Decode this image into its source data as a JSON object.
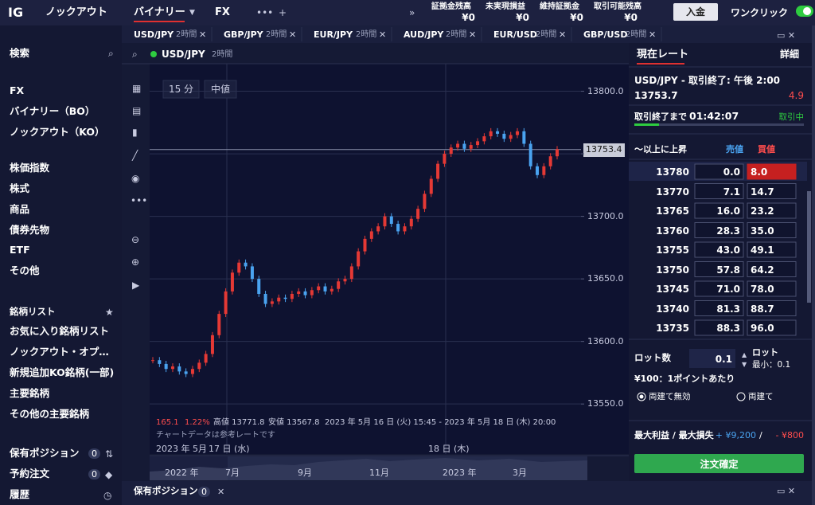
{
  "topbar": {
    "logo": "IG",
    "tabs": [
      "ノックアウト",
      "バイナリー",
      "FX"
    ],
    "summary": [
      {
        "label": "証拠金残高",
        "value": "¥0"
      },
      {
        "label": "未実現損益",
        "value": "¥0"
      },
      {
        "label": "維持証拠金",
        "value": "¥0"
      },
      {
        "label": "取引可能残高",
        "value": "¥0"
      }
    ],
    "deposit": "入金",
    "one_click": "ワンクリック"
  },
  "sidebar": {
    "search": "検索",
    "markets": [
      "FX",
      "バイナリー（BO）",
      "ノックアウト（KO）"
    ],
    "assets": [
      "株価指数",
      "株式",
      "商品",
      "債券先物",
      "ETF",
      "その他"
    ],
    "watchlist_title": "銘柄リスト",
    "watchlists": [
      "お気に入り銘柄リスト",
      "ノックアウト・オプ…",
      "新規追加KO銘柄(一部)",
      "主要銘柄",
      "その他の主要銘柄"
    ],
    "positions": {
      "label": "保有ポジション",
      "count": "0"
    },
    "orders": {
      "label": "予約注文",
      "count": "0"
    },
    "history": "履歴"
  },
  "instrument_tabs": [
    {
      "name": "USD/JPY",
      "tf": "2時間"
    },
    {
      "name": "GBP/JPY",
      "tf": "2時間"
    },
    {
      "name": "EUR/JPY",
      "tf": "2時間"
    },
    {
      "name": "AUD/JPY",
      "tf": "2時間"
    },
    {
      "name": "EUR/USD",
      "tf": "2時間"
    },
    {
      "name": "GBP/USD",
      "tf": "2時間"
    }
  ],
  "chart": {
    "type": "candlestick",
    "instrument": "USD/JPY",
    "tf": "2時間",
    "interval": "15 分",
    "price_type": "中値",
    "ylim": [
      13510,
      13822
    ],
    "yticks": [
      13550.0,
      13600.0,
      13650.0,
      13700.0,
      13750.0,
      13800.0
    ],
    "ytick_labels": [
      "13550.0",
      "13600.0",
      "13650.0",
      "13700.0",
      "13750.0",
      "13800.0"
    ],
    "current_price": 13753.4,
    "closes": [
      13585,
      13582,
      13578,
      13580,
      13576,
      13574,
      13578,
      13583,
      13590,
      13605,
      13622,
      13640,
      13655,
      13663,
      13660,
      13650,
      13638,
      13630,
      13632,
      13635,
      13634,
      13638,
      13640,
      13637,
      13641,
      13644,
      13640,
      13642,
      13648,
      13650,
      13660,
      13672,
      13682,
      13688,
      13692,
      13700,
      13694,
      13688,
      13692,
      13698,
      13706,
      13718,
      13730,
      13742,
      13750,
      13755,
      13758,
      13754,
      13757,
      13760,
      13764,
      13768,
      13766,
      13762,
      13765,
      13768,
      13758,
      13740,
      13733,
      13740,
      13748,
      13753.7
    ],
    "up_color": "#e53935",
    "down_color": "#4aa3f0",
    "info": {
      "change": "165.1",
      "change_pct": "1.22%",
      "high": "高値 13771.8",
      "low": "安値 13567.8",
      "range": "2023 年 5月 16 日 (火) 15:45 - 2023 年 5月 18 日 (木) 20:00"
    },
    "note": "チャートデータは参考レートです",
    "x_labels": [
      "2023 年 5月",
      "17 日 (水)",
      "18 日 (木)"
    ],
    "navigator_labels": [
      "2022 年",
      "7月",
      "9月",
      "11月",
      "2023 年",
      "3月"
    ]
  },
  "panel": {
    "tabs": [
      "現在レート",
      "詳細"
    ],
    "title": "USD/JPY - 取引終了: 午後 2:00",
    "price": "13753.7",
    "change": "4.9",
    "countdown_label": "取引終了まで",
    "countdown": "01:42:07",
    "status": "取引中",
    "table_header": [
      "～以上に上昇",
      "売値",
      "買値"
    ],
    "rows": [
      [
        "13780",
        "0.0",
        "8.0"
      ],
      [
        "13770",
        "7.1",
        "14.7"
      ],
      [
        "13765",
        "16.0",
        "23.2"
      ],
      [
        "13760",
        "28.3",
        "35.0"
      ],
      [
        "13755",
        "43.0",
        "49.1"
      ],
      [
        "13750",
        "57.8",
        "64.2"
      ],
      [
        "13745",
        "71.0",
        "78.0"
      ],
      [
        "13740",
        "81.3",
        "88.7"
      ],
      [
        "13735",
        "88.3",
        "96.0"
      ]
    ],
    "lot_label": "ロット数",
    "lot": "0.1",
    "lot_unit": "ロット",
    "lot_min": "最小：0.1",
    "per_point": "¥100：1ポイントあたり",
    "hedge": [
      "両建て無効",
      "両建て"
    ],
    "max_label": "最大利益 / 最大損失",
    "max_profit": "+ ¥9,200",
    "max_sep": "/",
    "max_loss": "- ¥800",
    "submit": "注文確定"
  },
  "bottom": {
    "label": "保有ポジション",
    "count": "0"
  }
}
